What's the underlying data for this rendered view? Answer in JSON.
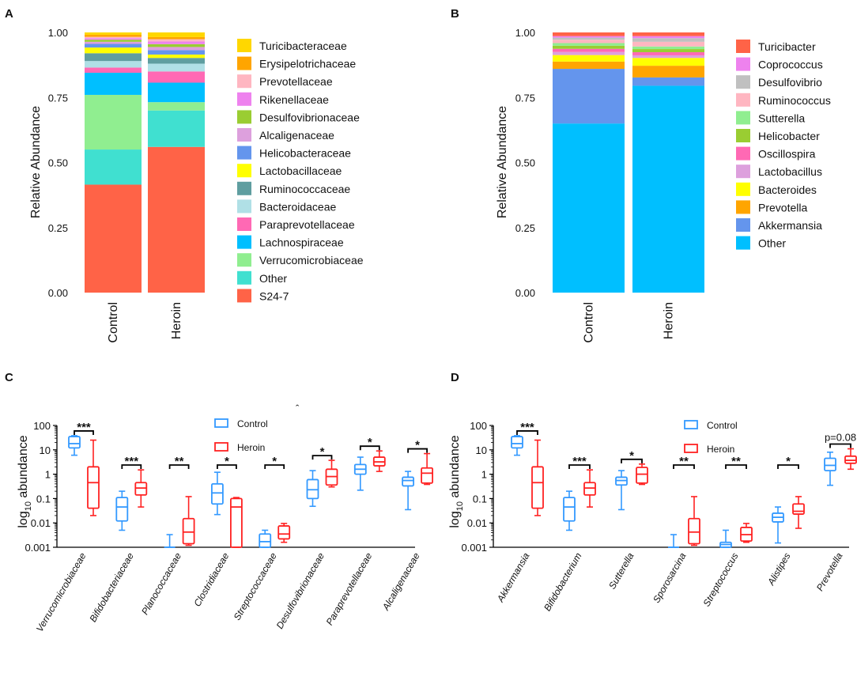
{
  "chart_data": [
    {
      "panel": "A",
      "type": "bar",
      "stacked": true,
      "ylabel": "Relative Abundance",
      "yticks": [
        "0.00",
        "0.25",
        "0.50",
        "0.75",
        "1.00"
      ],
      "ylim": [
        0,
        1
      ],
      "categories": [
        "Control",
        "Heroin"
      ],
      "series": [
        {
          "name": "S24-7",
          "color": "#FF6347",
          "values": [
            0.415,
            0.56
          ]
        },
        {
          "name": "Other",
          "color": "#40E0D0",
          "values": [
            0.135,
            0.14
          ]
        },
        {
          "name": "Verrucomicrobiaceae",
          "color": "#90EE90",
          "values": [
            0.21,
            0.032
          ]
        },
        {
          "name": "Lachnospiraceae",
          "color": "#00BFFF",
          "values": [
            0.085,
            0.075
          ]
        },
        {
          "name": "Paraprevotellaceae",
          "color": "#FF69B4",
          "values": [
            0.02,
            0.043
          ]
        },
        {
          "name": "Bacteroidaceae",
          "color": "#B0E0E6",
          "values": [
            0.025,
            0.03
          ]
        },
        {
          "name": "Ruminococcaceae",
          "color": "#5F9EA0",
          "values": [
            0.03,
            0.022
          ]
        },
        {
          "name": "Lactobacillaceae",
          "color": "#FFFF00",
          "values": [
            0.022,
            0.013
          ]
        },
        {
          "name": "Helicobacteraceae",
          "color": "#6495ED",
          "values": [
            0.014,
            0.017
          ]
        },
        {
          "name": "Alcaligenaceae",
          "color": "#DDA0DD",
          "values": [
            0.008,
            0.012
          ]
        },
        {
          "name": "Desulfovibrionaceae",
          "color": "#9ACD32",
          "values": [
            0.008,
            0.011
          ]
        },
        {
          "name": "Rikenellaceae",
          "color": "#EE82EE",
          "values": [
            0.006,
            0.01
          ]
        },
        {
          "name": "Prevotellaceae",
          "color": "#FFB6C1",
          "values": [
            0.005,
            0.009
          ]
        },
        {
          "name": "Erysipelotrichaceae",
          "color": "#FFA500",
          "values": [
            0.008,
            0.008
          ]
        },
        {
          "name": "Turicibacteraceae",
          "color": "#FFD700",
          "values": [
            0.009,
            0.018
          ]
        }
      ]
    },
    {
      "panel": "B",
      "type": "bar",
      "stacked": true,
      "ylabel": "Relative Abundance",
      "yticks": [
        "0.00",
        "0.25",
        "0.50",
        "0.75",
        "1.00"
      ],
      "ylim": [
        0,
        1
      ],
      "categories": [
        "Control",
        "Heroin"
      ],
      "series": [
        {
          "name": "Other",
          "color": "#00BFFF",
          "values": [
            0.65,
            0.795
          ]
        },
        {
          "name": "Akkermansia",
          "color": "#6495ED",
          "values": [
            0.21,
            0.032
          ]
        },
        {
          "name": "Prevotella",
          "color": "#FFA500",
          "values": [
            0.028,
            0.045
          ]
        },
        {
          "name": "Bacteroides",
          "color": "#FFFF00",
          "values": [
            0.025,
            0.03
          ]
        },
        {
          "name": "Lactobacillus",
          "color": "#DDA0DD",
          "values": [
            0.012,
            0.01
          ]
        },
        {
          "name": "Oscillospira",
          "color": "#FF69B4",
          "values": [
            0.012,
            0.012
          ]
        },
        {
          "name": "Helicobacter",
          "color": "#9ACD32",
          "values": [
            0.012,
            0.012
          ]
        },
        {
          "name": "Sutterella",
          "color": "#90EE90",
          "values": [
            0.01,
            0.01
          ]
        },
        {
          "name": "Ruminococcus",
          "color": "#FFB6C1",
          "values": [
            0.013,
            0.018
          ]
        },
        {
          "name": "Desulfovibrio",
          "color": "#C0C0C0",
          "values": [
            0.008,
            0.014
          ]
        },
        {
          "name": "Coprococcus",
          "color": "#EE82EE",
          "values": [
            0.006,
            0.008
          ]
        },
        {
          "name": "Turicibacter",
          "color": "#FF6347",
          "values": [
            0.014,
            0.014
          ]
        }
      ]
    },
    {
      "panel": "C",
      "type": "box",
      "ylabel_base": "log",
      "ylabel_sub": "10",
      "ylabel_rest": " abundance",
      "yscale": "log",
      "ylim": [
        0.001,
        100
      ],
      "yticks": [
        "0.001",
        "0.01",
        "0.1",
        "1",
        "10",
        "100"
      ],
      "legend": [
        {
          "name": "Control",
          "color": "#3399FF"
        },
        {
          "name": "Heroin",
          "color": "#FF2222"
        }
      ],
      "stray_mark": "ˆ",
      "categories": [
        {
          "name": "Verrucomicrobiaceae",
          "sig": "***",
          "control": {
            "min": 6,
            "q1": 12,
            "median": 18,
            "q3": 35,
            "max": 38
          },
          "heroin": {
            "min": 0.02,
            "q1": 0.04,
            "median": 0.45,
            "q3": 2,
            "max": 25
          }
        },
        {
          "name": "Bifidobacteriaceae",
          "sig": "***",
          "control": {
            "min": 0.005,
            "q1": 0.012,
            "median": 0.045,
            "q3": 0.11,
            "max": 0.2
          },
          "heroin": {
            "min": 0.045,
            "q1": 0.14,
            "median": 0.27,
            "q3": 0.45,
            "max": 1.5
          }
        },
        {
          "name": "Planococcaceae",
          "sig": "**",
          "control": {
            "min": 0.001,
            "q1": 0.001,
            "median": 0.001,
            "q3": 0.001,
            "max": 0.0033
          },
          "heroin": {
            "min": 0.0012,
            "q1": 0.0014,
            "median": 0.0042,
            "q3": 0.015,
            "max": 0.12
          }
        },
        {
          "name": "Clostridiaceae",
          "sig": "*",
          "control": {
            "min": 0.022,
            "q1": 0.06,
            "median": 0.17,
            "q3": 0.4,
            "max": 1.2
          },
          "heroin": {
            "min": 0.001,
            "q1": 0.001,
            "median": 0.045,
            "q3": 0.1,
            "max": 0.11
          }
        },
        {
          "name": "Streptococcaceae",
          "sig": "*",
          "control": {
            "min": 0.001,
            "q1": 0.001,
            "median": 0.0017,
            "q3": 0.0035,
            "max": 0.005
          },
          "heroin": {
            "min": 0.0016,
            "q1": 0.0022,
            "median": 0.0035,
            "q3": 0.0075,
            "max": 0.0095
          }
        },
        {
          "name": "Desulfovibrionaceae",
          "sig": "*",
          "control": {
            "min": 0.048,
            "q1": 0.1,
            "median": 0.23,
            "q3": 0.6,
            "max": 1.4
          },
          "heroin": {
            "min": 0.3,
            "q1": 0.36,
            "median": 0.8,
            "q3": 1.6,
            "max": 3.7
          }
        },
        {
          "name": "Paraprevotellaceae",
          "sig": "*",
          "control": {
            "min": 0.22,
            "q1": 1.0,
            "median": 1.6,
            "q3": 2.5,
            "max": 5
          },
          "heroin": {
            "min": 1.3,
            "q1": 2.2,
            "median": 3.2,
            "q3": 5,
            "max": 9
          }
        },
        {
          "name": "Alcaligenaceae",
          "sig": "*",
          "control": {
            "min": 0.035,
            "q1": 0.33,
            "median": 0.55,
            "q3": 0.75,
            "max": 1.3
          },
          "heroin": {
            "min": 0.38,
            "q1": 0.43,
            "median": 1.1,
            "q3": 1.8,
            "max": 7
          }
        }
      ]
    },
    {
      "panel": "D",
      "type": "box",
      "ylabel_base": "log",
      "ylabel_sub": "10",
      "ylabel_rest": " abundance",
      "yscale": "log",
      "ylim": [
        0.001,
        100
      ],
      "yticks": [
        "0.001",
        "0.01",
        "0.1",
        "1",
        "10",
        "100"
      ],
      "legend": [
        {
          "name": "Control",
          "color": "#3399FF"
        },
        {
          "name": "Heroin",
          "color": "#FF2222"
        }
      ],
      "categories": [
        {
          "name": "Akkermansia",
          "sig": "***",
          "control": {
            "min": 6,
            "q1": 12,
            "median": 18,
            "q3": 35,
            "max": 38
          },
          "heroin": {
            "min": 0.02,
            "q1": 0.04,
            "median": 0.45,
            "q3": 2,
            "max": 25
          }
        },
        {
          "name": "Bifidobacterium",
          "sig": "***",
          "control": {
            "min": 0.005,
            "q1": 0.012,
            "median": 0.045,
            "q3": 0.11,
            "max": 0.2
          },
          "heroin": {
            "min": 0.045,
            "q1": 0.14,
            "median": 0.27,
            "q3": 0.45,
            "max": 1.5
          }
        },
        {
          "name": "Sutterella",
          "sig": "*",
          "control": {
            "min": 0.035,
            "q1": 0.36,
            "median": 0.55,
            "q3": 0.75,
            "max": 1.4
          },
          "heroin": {
            "min": 0.38,
            "q1": 0.43,
            "median": 1.0,
            "q3": 1.9,
            "max": 2.6
          }
        },
        {
          "name": "Sporosarcina",
          "sig": "**",
          "control": {
            "min": 0.001,
            "q1": 0.001,
            "median": 0.001,
            "q3": 0.001,
            "max": 0.0033
          },
          "heroin": {
            "min": 0.0012,
            "q1": 0.0014,
            "median": 0.0042,
            "q3": 0.015,
            "max": 0.12
          }
        },
        {
          "name": "Streptococcus",
          "sig": "**",
          "control": {
            "min": 0.001,
            "q1": 0.001,
            "median": 0.0013,
            "q3": 0.0016,
            "max": 0.005
          },
          "heroin": {
            "min": 0.0016,
            "q1": 0.0018,
            "median": 0.0033,
            "q3": 0.0065,
            "max": 0.0095
          }
        },
        {
          "name": "Alistipes",
          "sig": "*",
          "control": {
            "min": 0.0015,
            "q1": 0.011,
            "median": 0.017,
            "q3": 0.025,
            "max": 0.045
          },
          "heroin": {
            "min": 0.006,
            "q1": 0.023,
            "median": 0.03,
            "q3": 0.06,
            "max": 0.12
          }
        },
        {
          "name": "Prevotella",
          "sig": "p=0.08",
          "control": {
            "min": 0.35,
            "q1": 1.4,
            "median": 2.3,
            "q3": 4.5,
            "max": 8
          },
          "heroin": {
            "min": 1.6,
            "q1": 2.8,
            "median": 3.7,
            "q3": 5.5,
            "max": 11
          }
        }
      ]
    }
  ]
}
